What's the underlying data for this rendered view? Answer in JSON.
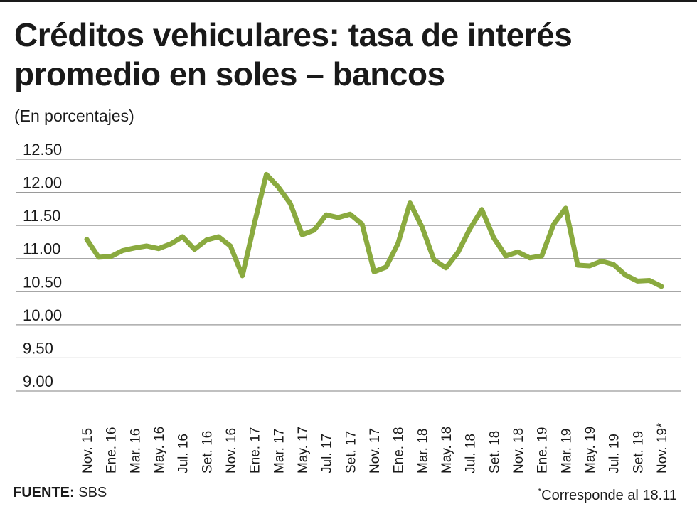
{
  "header": {
    "title": "Créditos vehiculares: tasa de interés promedio en soles – bancos",
    "subtitle": "(En porcentajes)"
  },
  "footer": {
    "source_label": "FUENTE:",
    "source_value": "SBS",
    "footnote_mark": "*",
    "footnote_text": "Corresponde al 18.11"
  },
  "colors": {
    "line": "#8aaa3f",
    "grid": "#9a9a9a",
    "text": "#1a1a1a"
  },
  "chart_data": {
    "type": "line",
    "title": "Créditos vehiculares: tasa de interés promedio en soles – bancos",
    "subtitle": "(En porcentajes)",
    "xlabel": "",
    "ylabel": "",
    "ylim": [
      9.0,
      12.5
    ],
    "yticks": [
      "12.50",
      "12.00",
      "11.50",
      "11.00",
      "10.50",
      "10.00",
      "9.50",
      "9.00"
    ],
    "grid": true,
    "xtick_labels": [
      "Nov. 15",
      "Ene. 16",
      "Mar. 16",
      "May. 16",
      "Jul. 16",
      "Set. 16",
      "Nov. 16",
      "Ene. 17",
      "Mar. 17",
      "May. 17",
      "Jul. 17",
      "Set. 17",
      "Nov. 17",
      "Ene. 18",
      "Mar. 18",
      "May. 18",
      "Jul. 18",
      "Set. 18",
      "Nov. 18",
      "Ene. 19",
      "Mar. 19",
      "May. 19",
      "Jul. 19",
      "Set. 19",
      "Nov. 19*"
    ],
    "series": [
      {
        "values": [
          11.29,
          11.02,
          11.03,
          11.12,
          11.16,
          11.19,
          11.15,
          11.22,
          11.33,
          11.14,
          11.28,
          11.33,
          11.19,
          10.74,
          11.53,
          12.27,
          12.08,
          11.83,
          11.36,
          11.43,
          11.66,
          11.62,
          11.67,
          11.52,
          10.8,
          10.87,
          11.23,
          11.84,
          11.48,
          10.98,
          10.86,
          11.09,
          11.45,
          11.74,
          11.31,
          11.04,
          11.1,
          11.01,
          11.04,
          11.52,
          11.76,
          10.9,
          10.89,
          10.96,
          10.91,
          10.75,
          10.66,
          10.67,
          10.58
        ]
      }
    ]
  }
}
